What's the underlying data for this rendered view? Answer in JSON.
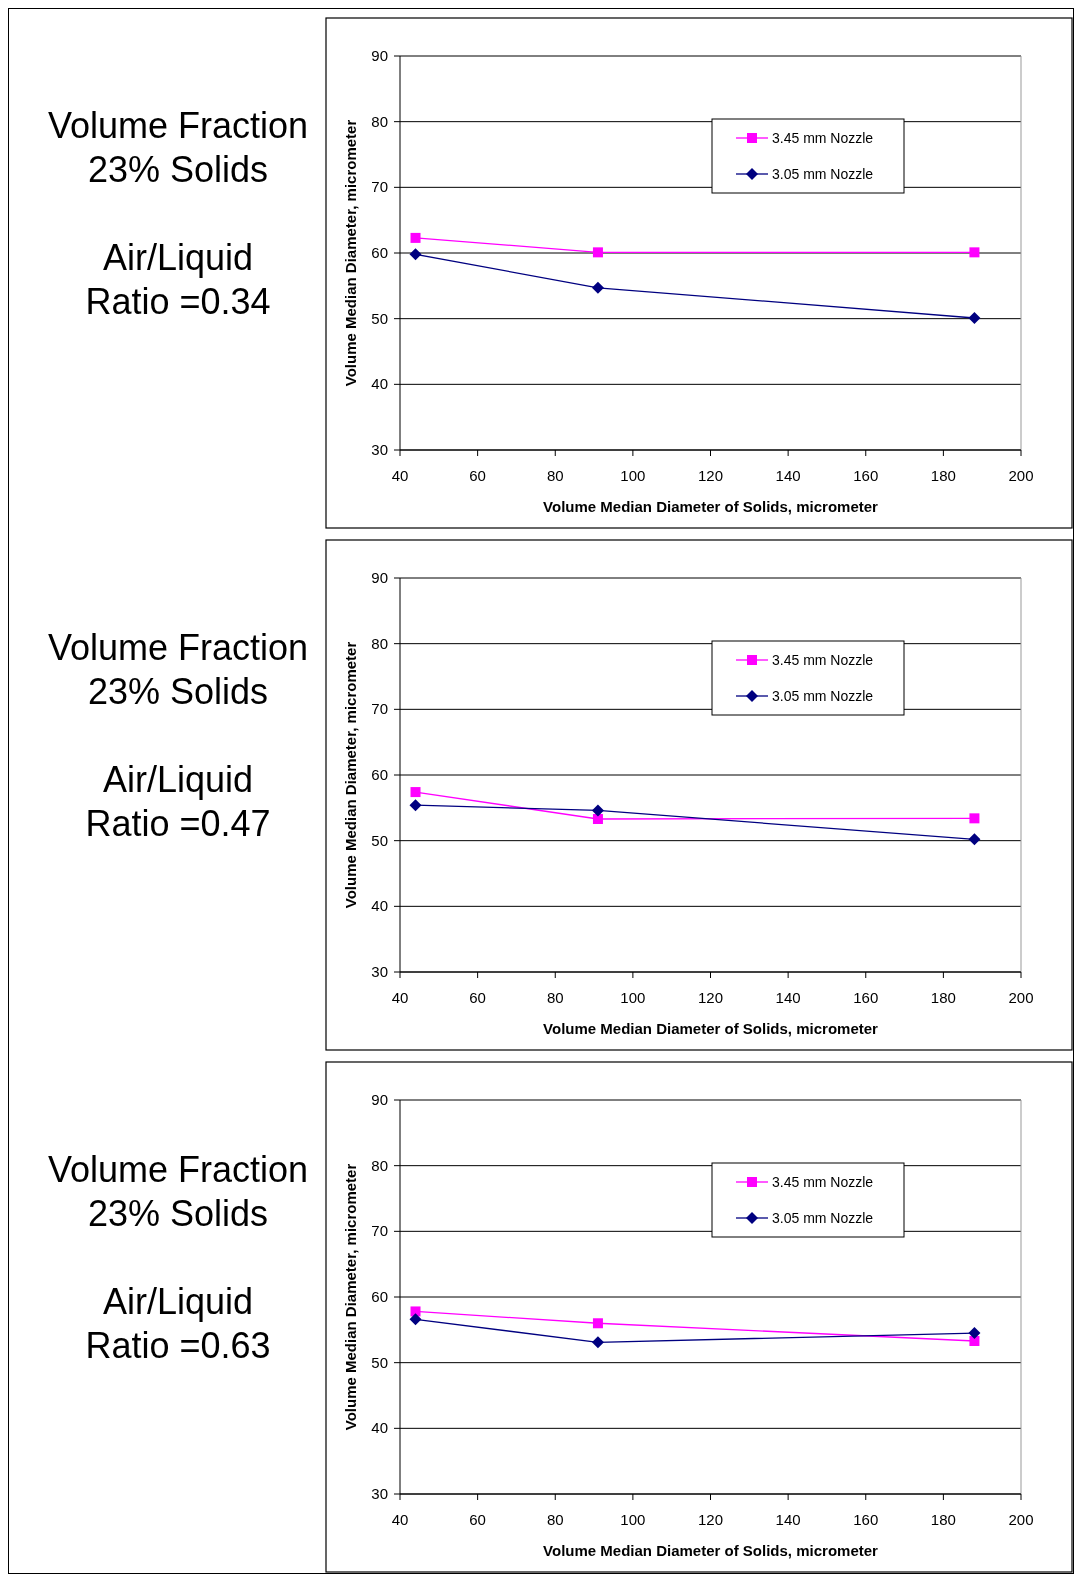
{
  "chart_data": [
    {
      "type": "line",
      "title": "Volume Fraction\n23% Solids",
      "subtitle": "Air/Liquid\nRatio =0.34",
      "xlabel": "Volume Median Diameter of Solids, micrometer",
      "ylabel": "Volume Median Diameter, micrometer",
      "x": [
        44,
        91,
        188
      ],
      "xlim": [
        40,
        200
      ],
      "xticks": [
        40,
        60,
        80,
        100,
        120,
        140,
        160,
        180,
        200
      ],
      "ylim": [
        30,
        90
      ],
      "yticks": [
        30,
        40,
        50,
        60,
        70,
        80,
        90
      ],
      "grid": "y",
      "legend": "top right",
      "series": [
        {
          "name": "3.45 mm Nozzle",
          "color": "#ff00ff",
          "marker": "square",
          "values": [
            62.3,
            60.1,
            60.1
          ]
        },
        {
          "name": "3.05 mm Nozzle",
          "color": "#000080",
          "marker": "diamond",
          "values": [
            59.8,
            54.7,
            50.1
          ]
        }
      ]
    },
    {
      "type": "line",
      "title": "Volume Fraction\n23% Solids",
      "subtitle": "Air/Liquid\nRatio =0.47",
      "xlabel": "Volume Median Diameter of Solids, micrometer",
      "ylabel": "Volume Median Diameter, micrometer",
      "x": [
        44,
        91,
        188
      ],
      "xlim": [
        40,
        200
      ],
      "xticks": [
        40,
        60,
        80,
        100,
        120,
        140,
        160,
        180,
        200
      ],
      "ylim": [
        30,
        90
      ],
      "yticks": [
        30,
        40,
        50,
        60,
        70,
        80,
        90
      ],
      "grid": "y",
      "legend": "top right",
      "series": [
        {
          "name": "3.45 mm Nozzle",
          "color": "#ff00ff",
          "marker": "square",
          "values": [
            57.4,
            53.3,
            53.4
          ]
        },
        {
          "name": "3.05 mm Nozzle",
          "color": "#000080",
          "marker": "diamond",
          "values": [
            55.4,
            54.6,
            50.2
          ]
        }
      ]
    },
    {
      "type": "line",
      "title": "Volume Fraction\n23% Solids",
      "subtitle": "Air/Liquid\nRatio =0.63",
      "xlabel": "Volume Median Diameter of Solids, micrometer",
      "ylabel": "Volume Median Diameter, micrometer",
      "x": [
        44,
        91,
        188
      ],
      "xlim": [
        40,
        200
      ],
      "xticks": [
        40,
        60,
        80,
        100,
        120,
        140,
        160,
        180,
        200
      ],
      "ylim": [
        30,
        90
      ],
      "yticks": [
        30,
        40,
        50,
        60,
        70,
        80,
        90
      ],
      "grid": "y",
      "legend": "top right",
      "series": [
        {
          "name": "3.45 mm Nozzle",
          "color": "#ff00ff",
          "marker": "square",
          "values": [
            57.8,
            56.0,
            53.3
          ]
        },
        {
          "name": "3.05 mm Nozzle",
          "color": "#000080",
          "marker": "diamond",
          "values": [
            56.6,
            53.1,
            54.5
          ]
        }
      ]
    }
  ]
}
